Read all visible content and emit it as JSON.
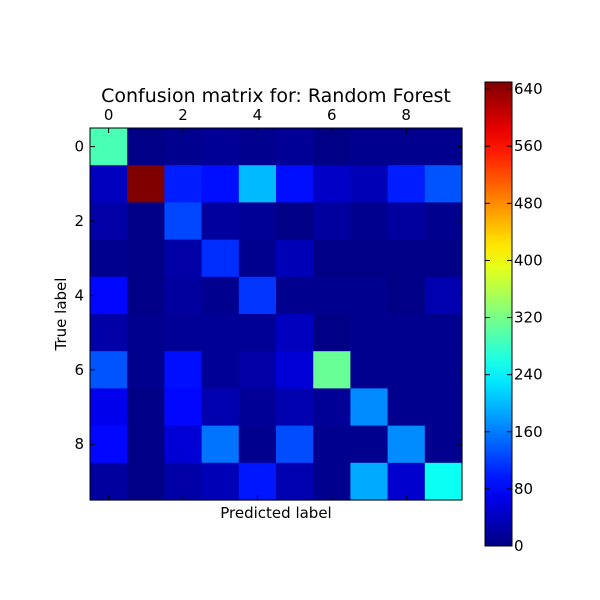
{
  "chart_data": {
    "type": "heatmap",
    "title": "Confusion matrix for: Random Forest",
    "xlabel": "Predicted label",
    "ylabel": "True label",
    "x_tick_labels": [
      "0",
      "2",
      "4",
      "6",
      "8"
    ],
    "x_tick_values": [
      0,
      2,
      4,
      6,
      8
    ],
    "y_tick_labels": [
      "0",
      "2",
      "4",
      "6",
      "8"
    ],
    "y_tick_values": [
      0,
      2,
      4,
      6,
      8
    ],
    "x_ticks_position": "top",
    "colormap": "jet",
    "vmin": 0,
    "vmax": 650,
    "colorbar_ticks": [
      0,
      80,
      160,
      240,
      320,
      400,
      480,
      560,
      640
    ],
    "colorbar_tick_labels": [
      "0",
      "80",
      "160",
      "240",
      "320",
      "400",
      "480",
      "560",
      "640"
    ],
    "colorbar_position": "right",
    "grid": false,
    "matrix": [
      [
        290,
        5,
        10,
        15,
        10,
        15,
        5,
        10,
        10,
        10
      ],
      [
        40,
        650,
        100,
        90,
        200,
        90,
        45,
        35,
        100,
        135
      ],
      [
        25,
        5,
        125,
        20,
        15,
        5,
        20,
        10,
        20,
        10
      ],
      [
        10,
        5,
        25,
        110,
        10,
        35,
        5,
        5,
        5,
        5
      ],
      [
        85,
        5,
        20,
        10,
        115,
        10,
        10,
        10,
        5,
        30
      ],
      [
        25,
        10,
        15,
        15,
        15,
        40,
        5,
        10,
        10,
        10
      ],
      [
        135,
        10,
        90,
        15,
        25,
        55,
        310,
        10,
        10,
        10
      ],
      [
        70,
        5,
        85,
        30,
        15,
        30,
        15,
        170,
        10,
        10
      ],
      [
        85,
        5,
        55,
        155,
        10,
        130,
        10,
        10,
        170,
        10
      ],
      [
        20,
        5,
        25,
        35,
        95,
        30,
        10,
        190,
        50,
        250
      ]
    ]
  }
}
